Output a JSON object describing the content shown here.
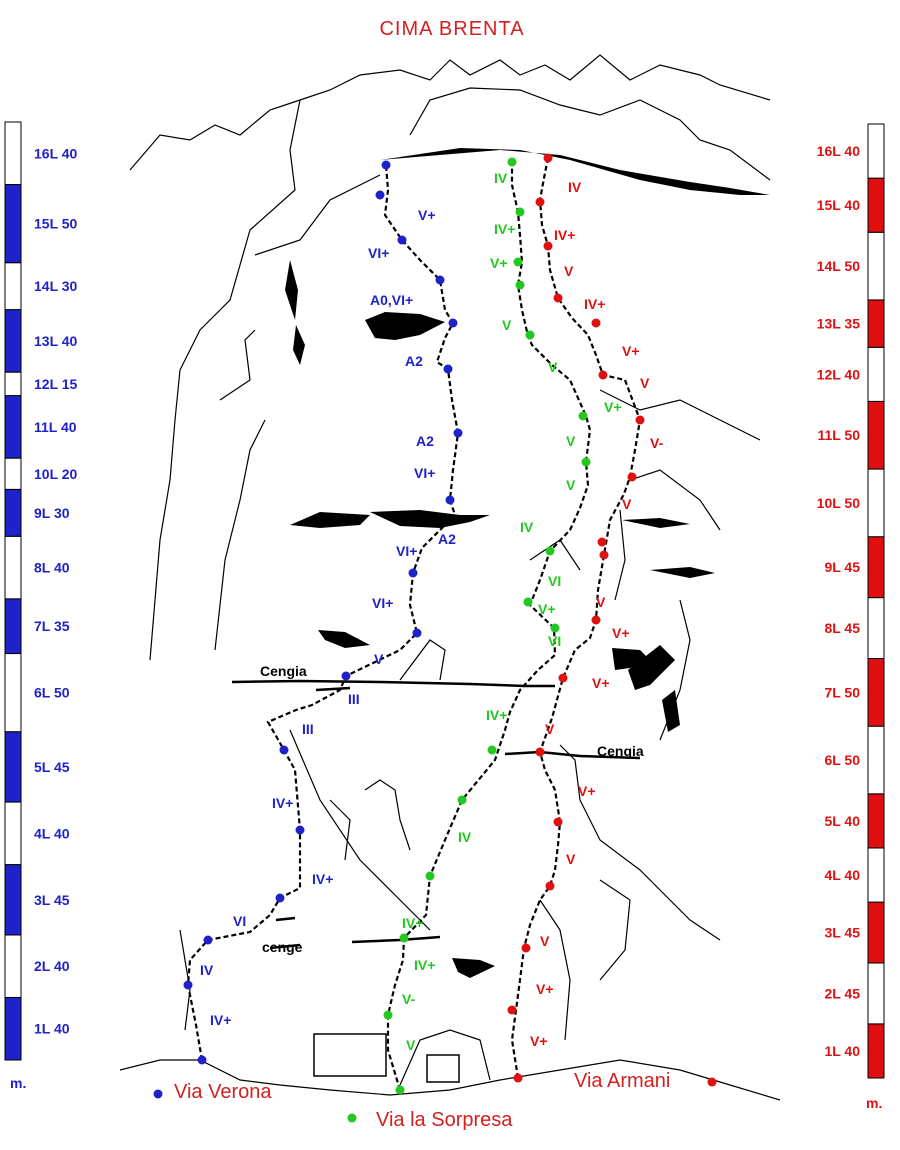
{
  "title": "CIMA  BRENTA",
  "colors": {
    "verona": "#1f22c8",
    "sorpresa": "#22c81e",
    "armani": "#e01010"
  },
  "left_scale": {
    "unit": "m.",
    "pitches": [
      {
        "label": "1L 40",
        "meters": 40
      },
      {
        "label": "2L 40",
        "meters": 40
      },
      {
        "label": "3L 45",
        "meters": 45
      },
      {
        "label": "4L 40",
        "meters": 40
      },
      {
        "label": "5L 45",
        "meters": 45
      },
      {
        "label": "6L 50",
        "meters": 50
      },
      {
        "label": "7L 35",
        "meters": 35
      },
      {
        "label": "8L 40",
        "meters": 40
      },
      {
        "label": "9L 30",
        "meters": 30
      },
      {
        "label": "10L 20",
        "meters": 20
      },
      {
        "label": "11L 40",
        "meters": 40
      },
      {
        "label": "12L 15",
        "meters": 15
      },
      {
        "label": "13L 40",
        "meters": 40
      },
      {
        "label": "14L 30",
        "meters": 30
      },
      {
        "label": "15L 50",
        "meters": 50
      },
      {
        "label": "16L 40",
        "meters": 40
      }
    ]
  },
  "right_scale": {
    "unit": "m.",
    "pitches": [
      {
        "label": "1L 40",
        "meters": 40
      },
      {
        "label": "2L 45",
        "meters": 45
      },
      {
        "label": "3L 45",
        "meters": 45
      },
      {
        "label": "4L 40",
        "meters": 40
      },
      {
        "label": "5L 40",
        "meters": 40
      },
      {
        "label": "6L 50",
        "meters": 50
      },
      {
        "label": "7L 50",
        "meters": 50
      },
      {
        "label": "8L 45",
        "meters": 45
      },
      {
        "label": "9L 45",
        "meters": 45
      },
      {
        "label": "10L 50",
        "meters": 50
      },
      {
        "label": "11L 50",
        "meters": 50
      },
      {
        "label": "12L 40",
        "meters": 40
      },
      {
        "label": "13L 35",
        "meters": 35
      },
      {
        "label": "14L 50",
        "meters": 50
      },
      {
        "label": "15L 40",
        "meters": 40
      },
      {
        "label": "16L 40",
        "meters": 40
      }
    ]
  },
  "ledges": {
    "cengia_left": "Cengia",
    "cengia_right": "Cengia",
    "cenge": "cenge"
  },
  "routes": {
    "verona": {
      "name": "Via Verona",
      "grades": [
        "IV+",
        "IV",
        "VI",
        "IV+",
        "IV+",
        "III",
        "III",
        "V",
        "VI+",
        "VI+",
        "A2",
        "VI+",
        "A2",
        "A2",
        "A0,VI+",
        "VI+",
        "V+"
      ]
    },
    "sorpresa": {
      "name": "Via la Sorpresa",
      "grades": [
        "V",
        "V-",
        "IV+",
        "IV+",
        "IV",
        "IV+",
        "VI",
        "V+",
        "VI",
        "IV",
        "V",
        "V",
        "V+",
        "V",
        "V",
        "V+",
        "IV+",
        "IV"
      ]
    },
    "armani": {
      "name": "Via Armani",
      "grades": [
        "V+",
        "V+",
        "V",
        "V",
        "V+",
        "V",
        "V+",
        "V+",
        "V",
        "V",
        "V-",
        "V",
        "V+",
        "IV+",
        "V",
        "IV+",
        "IV"
      ]
    }
  }
}
